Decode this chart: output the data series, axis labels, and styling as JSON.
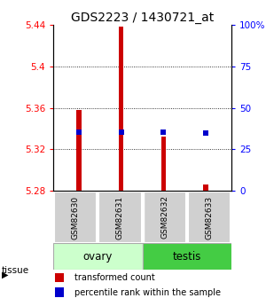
{
  "title": "GDS2223 / 1430721_at",
  "samples": [
    "GSM82630",
    "GSM82631",
    "GSM82632",
    "GSM82633"
  ],
  "bar_bottom": 5.28,
  "bar_tops": [
    5.358,
    5.438,
    5.332,
    5.286
  ],
  "perc_yvals": [
    5.337,
    5.337,
    5.337,
    5.336
  ],
  "ylim": [
    5.28,
    5.44
  ],
  "yticks_left": [
    5.28,
    5.32,
    5.36,
    5.4,
    5.44
  ],
  "yticks_right": [
    0,
    25,
    50,
    75,
    100
  ],
  "bar_color": "#cc0000",
  "percentile_color": "#0000cc",
  "legend_red_label": "transformed count",
  "legend_blue_label": "percentile rank within the sample",
  "ovary_color": "#ccffcc",
  "testis_color": "#44cc44",
  "sample_box_color": "#d0d0d0",
  "background_color": "#ffffff",
  "bar_width": 0.12,
  "n_bars": 4,
  "perc_markersize": 5
}
